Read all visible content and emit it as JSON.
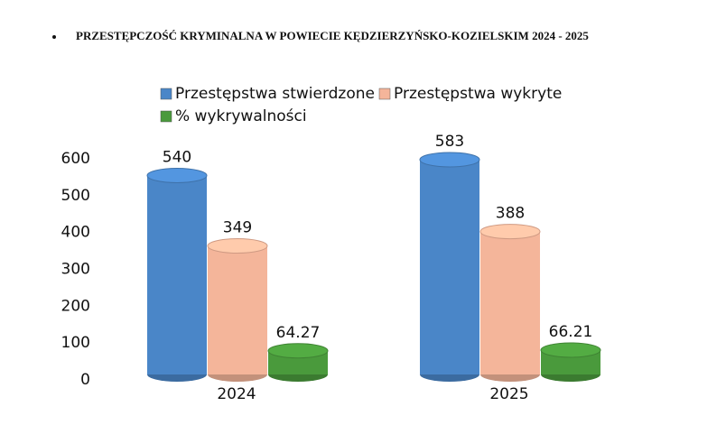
{
  "chart_data": {
    "type": "bar",
    "title": "PRZESTĘPCZOŚĆ KRYMINALNA W POWIECIE KĘDZIERZYŃSKO-KOZIELSKIM 2024 - 2025",
    "categories": [
      "2024",
      "2025"
    ],
    "series": [
      {
        "name": "Przestępstwa stwierdzone",
        "color": "#4a86c8",
        "values": [
          540,
          583
        ]
      },
      {
        "name": "Przestępstwa wykryte",
        "color": "#f4b59a",
        "values": [
          349,
          388
        ]
      },
      {
        "name": "% wykrywalności",
        "color": "#4a9a3c",
        "values": [
          64.27,
          66.21
        ]
      }
    ],
    "ylim": [
      0,
      600
    ],
    "yticks": [
      0,
      100,
      200,
      300,
      400,
      500,
      600
    ],
    "grid": false,
    "legend": "top"
  }
}
